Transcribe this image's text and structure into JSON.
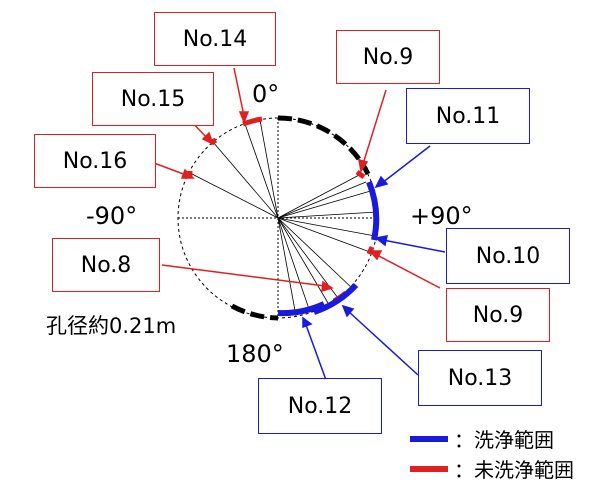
{
  "diagram": {
    "angles": {
      "top": "0°",
      "left": "-90°",
      "right": "+90°",
      "bottom": "180°"
    },
    "hole_note": "孔径約0.21m",
    "labels": [
      {
        "id": "no14",
        "text": "No.14",
        "kind": "uncleaned"
      },
      {
        "id": "no15",
        "text": "No.15",
        "kind": "uncleaned"
      },
      {
        "id": "no16",
        "text": "No.16",
        "kind": "uncleaned"
      },
      {
        "id": "no9a",
        "text": "No.9",
        "kind": "uncleaned"
      },
      {
        "id": "no11",
        "text": "No.11",
        "kind": "cleaned"
      },
      {
        "id": "no10",
        "text": "No.10",
        "kind": "cleaned"
      },
      {
        "id": "no9b",
        "text": "No.9",
        "kind": "uncleaned"
      },
      {
        "id": "no8",
        "text": "No.8",
        "kind": "uncleaned"
      },
      {
        "id": "no13",
        "text": "No.13",
        "kind": "cleaned"
      },
      {
        "id": "no12",
        "text": "No.12",
        "kind": "cleaned"
      }
    ],
    "legend": [
      {
        "label": "：洗浄範囲",
        "color": "#1a1adc"
      },
      {
        "label": "：未洗浄範囲",
        "color": "#e02020"
      }
    ],
    "colors": {
      "cleaned": "#1a1adc",
      "uncleaned": "#e02020",
      "outline": "#000000"
    }
  }
}
